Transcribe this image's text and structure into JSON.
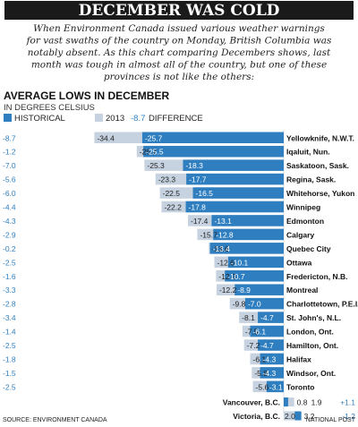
{
  "title": "DECEMBER WAS COLD",
  "intro": [
    "When Environment Canada issued various weather warnings",
    "for vast swaths of the country on Monday, British Columbia was",
    "notably absent. As this chart comparing Decembers shows, last",
    "month was tough in almost all of the country, but one of these",
    "provinces is not like the others:"
  ],
  "source": "SOURCE: ENVIRONMENT CANADA",
  "credit": "NATIONAL POST",
  "colors": {
    "historical": "#2f7fc0",
    "year2013": "#c6d2e0",
    "difference": "#2f7fc0",
    "title_bg": "#1a1a1a"
  },
  "chart_data": {
    "type": "bar",
    "title": "AVERAGE LOWS IN DECEMBER",
    "subtitle": "IN DEGREES CELSIUS",
    "legend": [
      {
        "key": "historical",
        "label": "HISTORICAL"
      },
      {
        "key": "year2013",
        "label": "2013"
      },
      {
        "key": "difference",
        "label": "DIFFERENCE",
        "sample": "-8.7"
      }
    ],
    "series": [
      {
        "name": "HISTORICAL",
        "key": "historical"
      },
      {
        "name": "2013",
        "key": "year2013"
      },
      {
        "name": "DIFFERENCE",
        "key": "difference"
      }
    ],
    "categories": [
      "Yellowknife, N.W.T.",
      "Iqaluit, Nun.",
      "Saskatoon, Sask.",
      "Regina, Sask.",
      "Whitehorse, Yukon",
      "Winnipeg",
      "Edmonton",
      "Calgary",
      "Quebec City",
      "Ottawa",
      "Fredericton, N.B.",
      "Montreal",
      "Charlottetown, P.E.I.",
      "St. John's, N.L.",
      "London, Ont.",
      "Hamilton, Ont.",
      "Halifax",
      "Windsor, Ont.",
      "Toronto",
      "Vancouver, B.C.",
      "Victoria, B.C."
    ],
    "rows": [
      {
        "city": "Yellowknife, N.W.T.",
        "diff": "-8.7",
        "y2013": "-34.4",
        "hist": "-25.7"
      },
      {
        "city": "Iqaluit, Nun.",
        "diff": "-1.2",
        "y2013": "-26.7",
        "hist": "-25.5"
      },
      {
        "city": "Saskatoon, Sask.",
        "diff": "-7.0",
        "y2013": "-25.3",
        "hist": "-18.3"
      },
      {
        "city": "Regina, Sask.",
        "diff": "-5.6",
        "y2013": "-23.3",
        "hist": "-17.7"
      },
      {
        "city": "Whitehorse, Yukon",
        "diff": "-6.0",
        "y2013": "-22.5",
        "hist": "-16.5"
      },
      {
        "city": "Winnipeg",
        "diff": "-4.4",
        "y2013": "-22.2",
        "hist": "-17.8"
      },
      {
        "city": "Edmonton",
        "diff": "-4.3",
        "y2013": "-17.4",
        "hist": "-13.1"
      },
      {
        "city": "Calgary",
        "diff": "-2.9",
        "y2013": "-15.7",
        "hist": "-12.8"
      },
      {
        "city": "Quebec City",
        "diff": "-0.2",
        "y2013": "-13.6",
        "hist": "-13.4"
      },
      {
        "city": "Ottawa",
        "diff": "-2.5",
        "y2013": "-12.6",
        "hist": "-10.1"
      },
      {
        "city": "Fredericton, N.B.",
        "diff": "-1.6",
        "y2013": "-12.3",
        "hist": "-10.7"
      },
      {
        "city": "Montreal",
        "diff": "-3.3",
        "y2013": "-12.2",
        "hist": "-8.9"
      },
      {
        "city": "Charlottetown, P.E.I.",
        "diff": "-2.8",
        "y2013": "-9.8",
        "hist": "-7.0"
      },
      {
        "city": "St. John's, N.L.",
        "diff": "-3.4",
        "y2013": "-8.1",
        "hist": "-4.7"
      },
      {
        "city": "London, Ont.",
        "diff": "-1.4",
        "y2013": "-7.5",
        "hist": "-6.1"
      },
      {
        "city": "Hamilton, Ont.",
        "diff": "-2.5",
        "y2013": "-7.2",
        "hist": "-4.7"
      },
      {
        "city": "Halifax",
        "diff": "-1.8",
        "y2013": "-6.1",
        "hist": "-4.3"
      },
      {
        "city": "Windsor, Ont.",
        "diff": "-1.5",
        "y2013": "-5.8",
        "hist": "-4.3"
      },
      {
        "city": "Toronto",
        "diff": "-2.5",
        "y2013": "-5.6",
        "hist": "-3.1"
      },
      {
        "city": "Vancouver, B.C.",
        "diff": "+1.1",
        "y2013": "1.9",
        "hist": "0.8"
      },
      {
        "city": "Victoria, B.C.",
        "diff": "-1.2",
        "y2013": "2.0",
        "hist": "3.2"
      }
    ],
    "xlim": [
      -34.4,
      3.2
    ],
    "grid": false,
    "legend_position": "top-left"
  }
}
